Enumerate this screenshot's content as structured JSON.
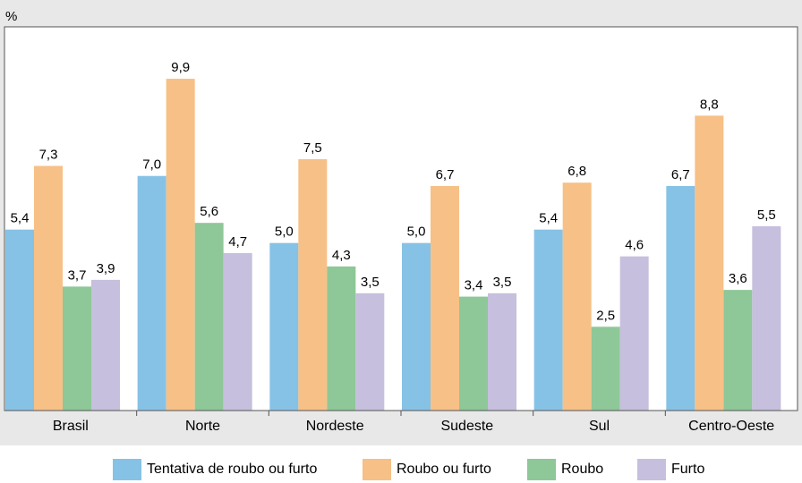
{
  "chart_data": {
    "type": "bar",
    "title": "",
    "ylabel": "%",
    "categories": [
      "Brasil",
      "Norte",
      "Nordeste",
      "Sudeste",
      "Sul",
      "Centro-Oeste"
    ],
    "series": [
      {
        "name": "Tentativa de roubo ou furto",
        "color": "#86c2e6",
        "values": [
          5.4,
          7.0,
          5.0,
          5.0,
          5.4,
          6.7
        ]
      },
      {
        "name": "Roubo ou furto",
        "color": "#f7c086",
        "values": [
          7.3,
          9.9,
          7.5,
          6.7,
          6.8,
          8.8
        ]
      },
      {
        "name": "Roubo",
        "color": "#8ec798",
        "values": [
          3.7,
          5.6,
          4.3,
          3.4,
          2.5,
          3.6
        ]
      },
      {
        "name": "Furto",
        "color": "#c6bfdd",
        "values": [
          3.9,
          4.7,
          3.5,
          3.5,
          4.6,
          5.5
        ]
      }
    ],
    "value_labels": [
      [
        "5,4",
        "7,0",
        "5,0",
        "5,0",
        "5,4",
        "6,7"
      ],
      [
        "7,3",
        "9,9",
        "7,5",
        "6,7",
        "6,8",
        "8,8"
      ],
      [
        "3,7",
        "5,6",
        "4,3",
        "3,4",
        "2,5",
        "3,6"
      ],
      [
        "3,9",
        "4,7",
        "3,5",
        "3,5",
        "4,6",
        "5,5"
      ]
    ],
    "ylim": [
      0,
      11.45
    ],
    "grid": false,
    "legend_position": "bottom"
  }
}
